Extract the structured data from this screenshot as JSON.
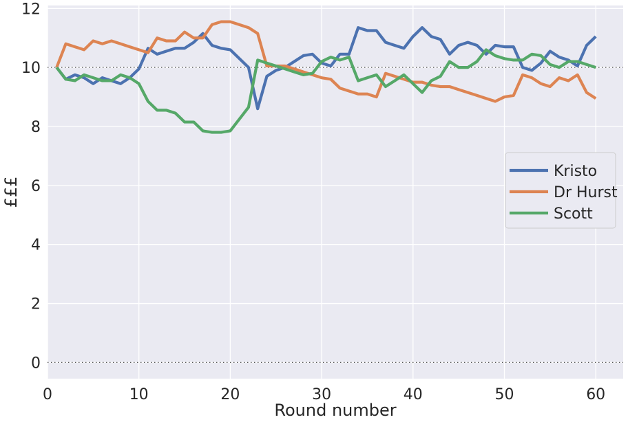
{
  "chart_data": {
    "type": "line",
    "xlabel": "Round number",
    "ylabel": "£££",
    "xlim": [
      0,
      63
    ],
    "ylim": [
      -0.55,
      12.1
    ],
    "x_ticks": [
      "0",
      "10",
      "20",
      "30",
      "40",
      "50",
      "60"
    ],
    "y_ticks": [
      "0",
      "2",
      "4",
      "6",
      "8",
      "10",
      "12"
    ],
    "grid": true,
    "reference_lines": [
      0,
      10
    ],
    "legend_position": "center-right",
    "x": [
      1,
      2,
      3,
      4,
      5,
      6,
      7,
      8,
      9,
      10,
      11,
      12,
      13,
      14,
      15,
      16,
      17,
      18,
      19,
      20,
      21,
      22,
      23,
      24,
      25,
      26,
      27,
      28,
      29,
      30,
      31,
      32,
      33,
      34,
      35,
      36,
      37,
      38,
      39,
      40,
      41,
      42,
      43,
      44,
      45,
      46,
      47,
      48,
      49,
      50,
      51,
      52,
      53,
      54,
      55,
      56,
      57,
      58,
      59,
      60
    ],
    "series": [
      {
        "name": "Kristo",
        "color": "#4c72b0",
        "values": [
          10.0,
          9.6,
          9.75,
          9.65,
          9.45,
          9.65,
          9.55,
          9.45,
          9.65,
          9.95,
          10.65,
          10.45,
          10.55,
          10.65,
          10.65,
          10.85,
          11.15,
          10.75,
          10.65,
          10.6,
          10.3,
          10.0,
          8.6,
          9.7,
          9.9,
          10.0,
          10.2,
          10.4,
          10.45,
          10.15,
          10.05,
          10.45,
          10.45,
          11.35,
          11.25,
          11.25,
          10.85,
          10.75,
          10.65,
          11.05,
          11.35,
          11.05,
          10.95,
          10.45,
          10.75,
          10.85,
          10.75,
          10.45,
          10.75,
          10.7,
          10.7,
          10.0,
          9.9,
          10.15,
          10.55,
          10.35,
          10.25,
          10.05,
          10.75,
          11.05
        ]
      },
      {
        "name": "Dr Hurst",
        "color": "#dd8452",
        "values": [
          10.0,
          10.8,
          10.7,
          10.6,
          10.9,
          10.8,
          10.9,
          10.8,
          10.7,
          10.6,
          10.5,
          11.0,
          10.9,
          10.9,
          11.2,
          11.0,
          11.0,
          11.45,
          11.55,
          11.55,
          11.45,
          11.35,
          11.15,
          10.05,
          10.05,
          10.05,
          9.95,
          9.85,
          9.75,
          9.65,
          9.6,
          9.3,
          9.2,
          9.1,
          9.1,
          9.0,
          9.8,
          9.7,
          9.6,
          9.5,
          9.5,
          9.4,
          9.35,
          9.35,
          9.25,
          9.15,
          9.05,
          8.95,
          8.85,
          9.0,
          9.05,
          9.75,
          9.65,
          9.45,
          9.35,
          9.65,
          9.55,
          9.75,
          9.15,
          8.95
        ]
      },
      {
        "name": "Scott",
        "color": "#55a868",
        "values": [
          10.0,
          9.6,
          9.55,
          9.75,
          9.65,
          9.55,
          9.55,
          9.75,
          9.65,
          9.45,
          8.85,
          8.55,
          8.55,
          8.45,
          8.15,
          8.15,
          7.85,
          7.8,
          7.8,
          7.85,
          8.25,
          8.65,
          10.25,
          10.15,
          10.05,
          9.95,
          9.85,
          9.75,
          9.8,
          10.2,
          10.35,
          10.25,
          10.35,
          9.55,
          9.65,
          9.75,
          9.35,
          9.55,
          9.75,
          9.45,
          9.15,
          9.55,
          9.7,
          10.2,
          10.0,
          10.0,
          10.2,
          10.6,
          10.4,
          10.3,
          10.25,
          10.25,
          10.45,
          10.4,
          10.1,
          10.0,
          10.2,
          10.2,
          10.1,
          10.0
        ]
      }
    ]
  }
}
